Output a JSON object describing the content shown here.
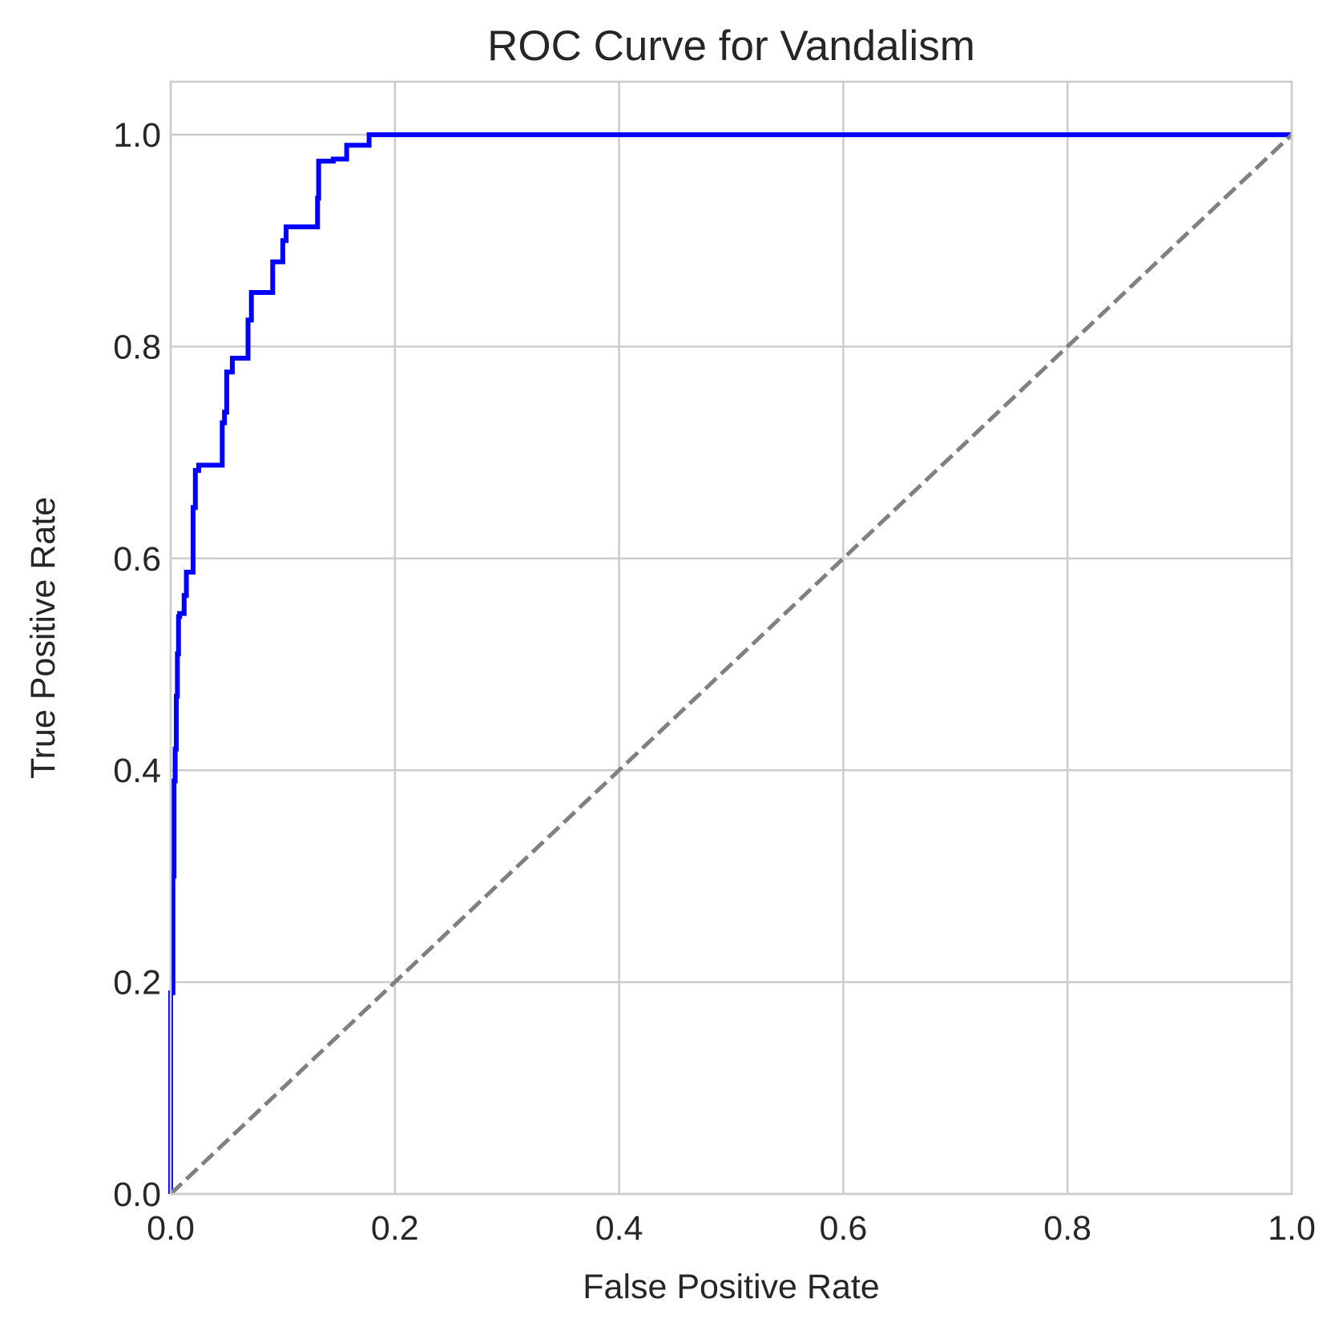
{
  "chart_data": {
    "type": "line",
    "title": "ROC Curve for Vandalism",
    "xlabel": "False Positive Rate",
    "ylabel": "True Positive Rate",
    "xlim": [
      0.0,
      1.0
    ],
    "ylim": [
      0.0,
      1.05
    ],
    "x_ticks": [
      "0.0",
      "0.2",
      "0.4",
      "0.6",
      "0.8",
      "1.0"
    ],
    "y_ticks": [
      "0.0",
      "0.2",
      "0.4",
      "0.6",
      "0.8",
      "1.0"
    ],
    "grid": true,
    "legend": "none",
    "colors": {
      "roc": "#0000ff",
      "diagonal": "#808080",
      "grid": "#cccccc"
    },
    "series": [
      {
        "style": "solid",
        "x": [
          0.0,
          0.0,
          0.002,
          0.002,
          0.003,
          0.003,
          0.004,
          0.004,
          0.005,
          0.005,
          0.006,
          0.006,
          0.007,
          0.007,
          0.008,
          0.008,
          0.012,
          0.012,
          0.014,
          0.014,
          0.02,
          0.02,
          0.022,
          0.022,
          0.025,
          0.025,
          0.046,
          0.046,
          0.048,
          0.048,
          0.05,
          0.05,
          0.055,
          0.055,
          0.069,
          0.069,
          0.072,
          0.072,
          0.091,
          0.091,
          0.1,
          0.1,
          0.103,
          0.103,
          0.131,
          0.131,
          0.132,
          0.132,
          0.145,
          0.145,
          0.157,
          0.157,
          0.177,
          0.177,
          1.0
        ],
        "y": [
          0.0,
          0.19,
          0.19,
          0.3,
          0.3,
          0.39,
          0.39,
          0.42,
          0.42,
          0.47,
          0.47,
          0.51,
          0.51,
          0.545,
          0.545,
          0.548,
          0.548,
          0.565,
          0.565,
          0.587,
          0.587,
          0.648,
          0.648,
          0.683,
          0.683,
          0.688,
          0.688,
          0.728,
          0.728,
          0.738,
          0.738,
          0.776,
          0.776,
          0.789,
          0.789,
          0.825,
          0.825,
          0.851,
          0.851,
          0.88,
          0.88,
          0.9,
          0.9,
          0.913,
          0.913,
          0.94,
          0.94,
          0.975,
          0.975,
          0.977,
          0.977,
          0.99,
          0.99,
          1.0,
          1.0
        ]
      },
      {
        "style": "dashed",
        "x": [
          0.0,
          1.0
        ],
        "y": [
          0.0,
          1.0
        ]
      }
    ]
  }
}
